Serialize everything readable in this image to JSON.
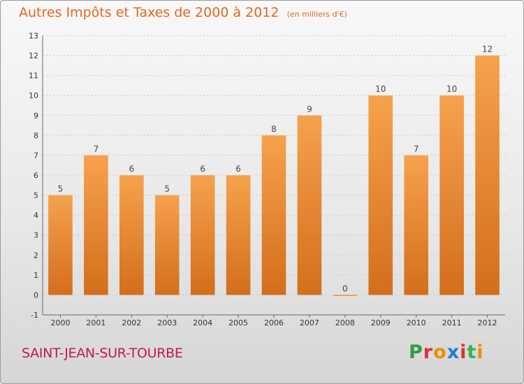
{
  "header": {
    "title": "Autres Impôts et Taxes de 2000 à 2012",
    "subtitle": "(en milliers d'€)"
  },
  "footer": {
    "commune": "SAINT-JEAN-SUR-TOURBE",
    "brand": [
      "P",
      "r",
      "o",
      "x",
      "i",
      "t",
      "i"
    ],
    "brand_colors": [
      "#2f9e44",
      "#e03131",
      "#f08c00",
      "#1c7ed6",
      "#e03131",
      "#37b24d",
      "#f08c00"
    ]
  },
  "chart_data": {
    "type": "bar",
    "categories": [
      "2000",
      "2001",
      "2002",
      "2003",
      "2004",
      "2005",
      "2006",
      "2007",
      "2008",
      "2009",
      "2010",
      "2011",
      "2012"
    ],
    "values": [
      5,
      7,
      6,
      5,
      6,
      6,
      8,
      9,
      0,
      10,
      7,
      10,
      12
    ],
    "ylim": [
      -1,
      13
    ],
    "yticks": [
      "-1",
      "0",
      "1",
      "2",
      "3",
      "4",
      "5",
      "6",
      "7",
      "8",
      "9",
      "10",
      "11",
      "12",
      "13"
    ],
    "bar_color": "#f0903a",
    "grid": true
  }
}
